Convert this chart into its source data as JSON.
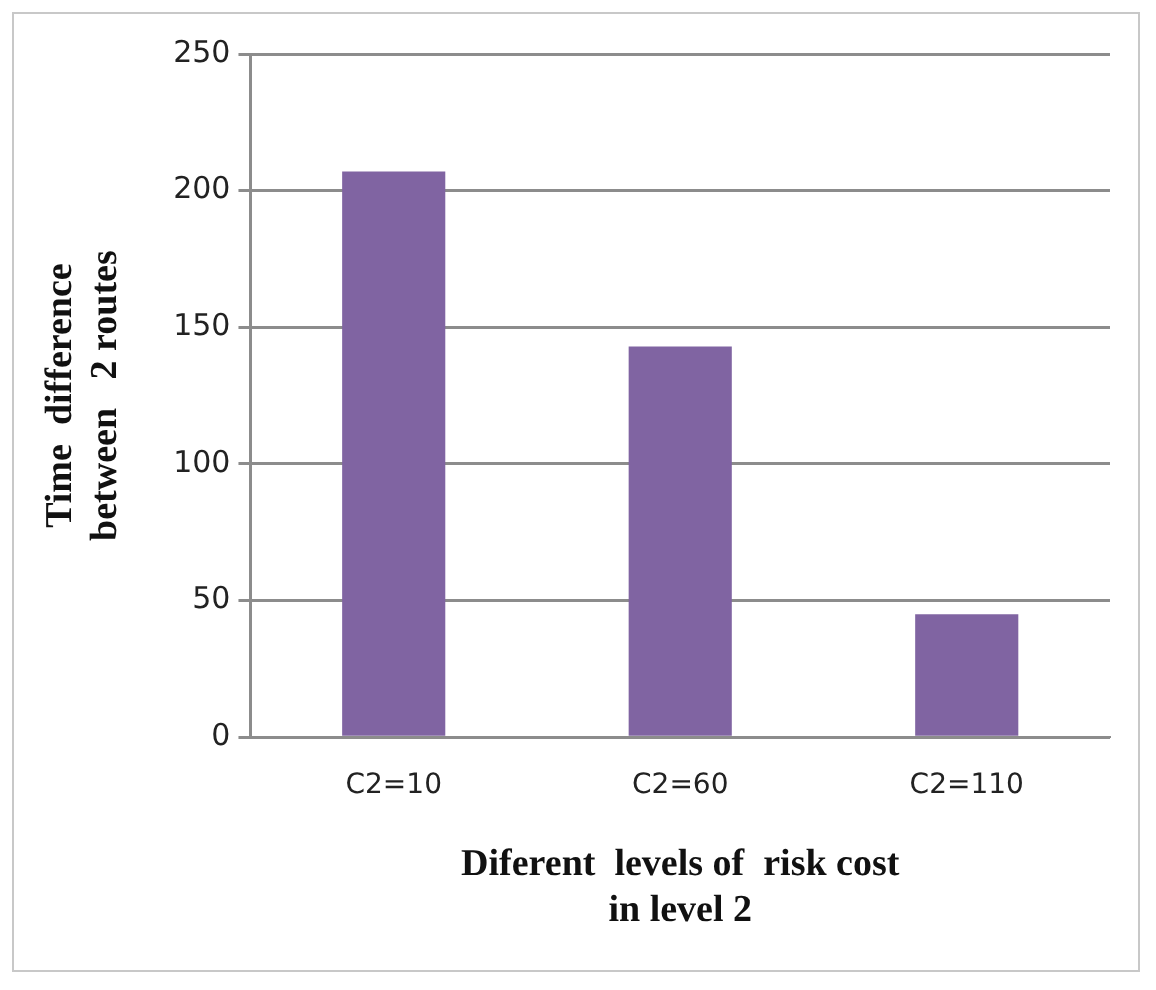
{
  "chart_data": {
    "type": "bar",
    "categories": [
      "C2=10",
      "C2=60",
      "C2=110"
    ],
    "values": [
      207,
      143,
      45
    ],
    "color": "#8064a2",
    "ylim": [
      0,
      250
    ],
    "yticks": [
      0,
      50,
      100,
      150,
      200,
      250
    ],
    "grid": "y",
    "ylabel": "Time  difference\nbetween   2 routes",
    "xlabel": "Diferent  levels of  risk cost\nin level 2"
  }
}
